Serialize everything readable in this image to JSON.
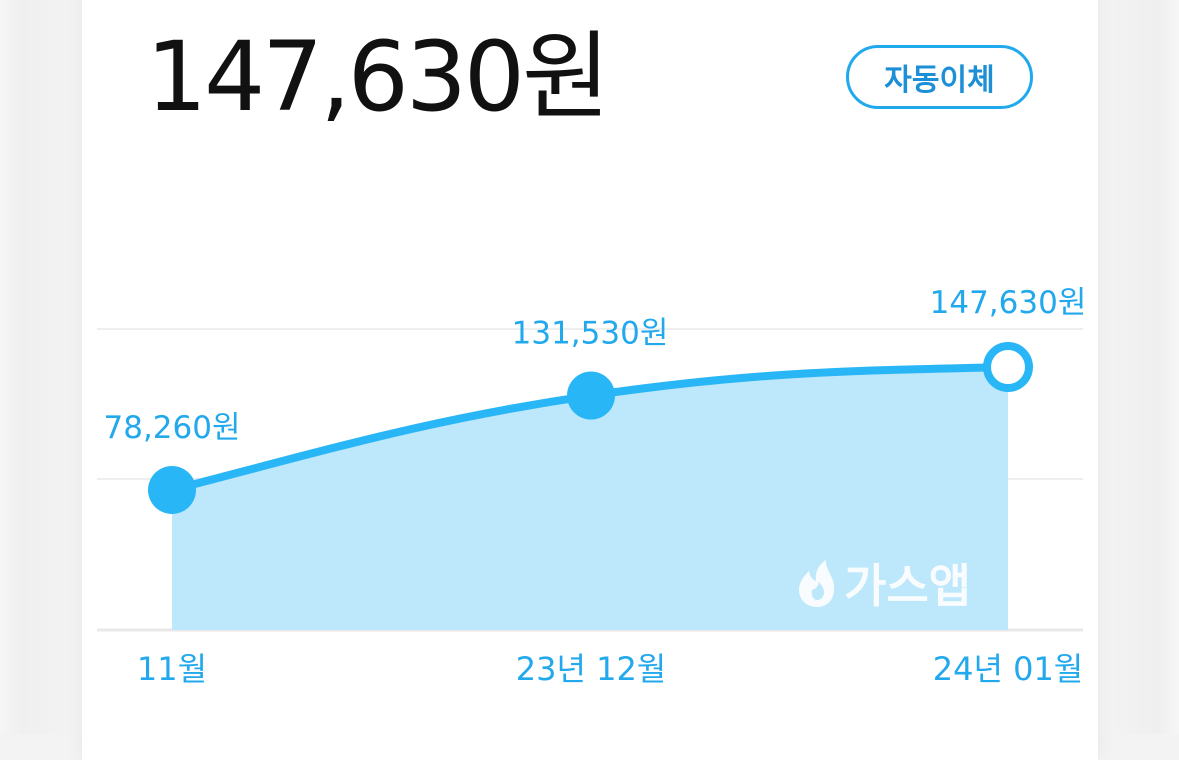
{
  "summary": {
    "total_amount": "147,630원",
    "auto_transfer_label": "자동이체"
  },
  "watermark": {
    "text": "가스앱",
    "icon": "flame-icon"
  },
  "colors": {
    "accent": "#29b6f6",
    "area_fill": "#bde7fb",
    "label": "#22a8ec",
    "grid": "#eeeeee"
  },
  "chart_data": {
    "type": "area",
    "categories": [
      "11월",
      "23년 12월",
      "24년 01월"
    ],
    "values": [
      78260,
      131530,
      147630
    ],
    "value_labels": [
      "78,260원",
      "131,530원",
      "147,630원"
    ],
    "unit": "원",
    "ylim": [
      0,
      200000
    ],
    "grid": true,
    "highlight_last_point": true
  }
}
